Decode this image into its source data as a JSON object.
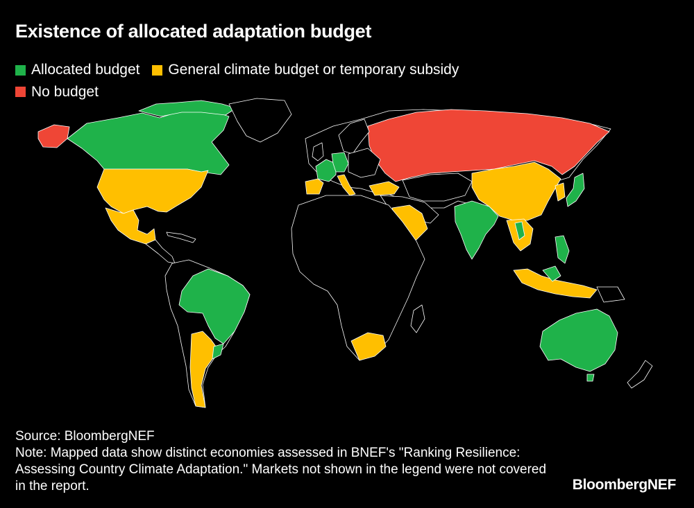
{
  "title": "Existence of allocated adaptation budget",
  "legend": [
    {
      "label": "Allocated budget",
      "color": "#1fb24a"
    },
    {
      "label": "General climate budget or temporary subsidy",
      "color": "#ffbf00"
    },
    {
      "label": "No budget",
      "color": "#ef4636"
    }
  ],
  "colors": {
    "allocated": "#1fb24a",
    "general": "#ffbf00",
    "none": "#ef4636",
    "not_covered": "#000000",
    "borders": "#ffffff"
  },
  "footer": {
    "source": "Source: BloombergNEF",
    "note": "Note: Mapped data show distinct economies assessed in BNEF's \"Ranking Resilience: Assessing Country Climate Adaptation.\" Markets not shown in the legend were not covered in the report."
  },
  "brand": "BloombergNEF"
}
